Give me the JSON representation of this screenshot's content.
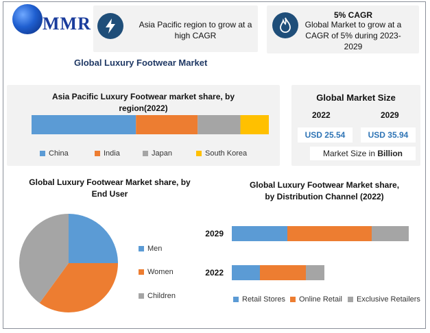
{
  "brand": {
    "name": "MMR"
  },
  "colors": {
    "blue": "#5b9bd5",
    "orange": "#ed7d31",
    "gray": "#a5a5a5",
    "yellow": "#ffc000",
    "badge": "#1f4e79",
    "accent_text": "#2e74b5"
  },
  "badges": [
    {
      "icon": "lightning-icon",
      "text": "Asia Pacific region to grow at a high CAGR"
    },
    {
      "icon": "flame-icon",
      "title": "5% CAGR",
      "text": "Global Market to grow at a CAGR of 5% during 2023-2029"
    }
  ],
  "main_title": "Global Luxury Footwear Market",
  "market_size": {
    "title": "Global Market Size",
    "years": [
      "2022",
      "2029"
    ],
    "values": [
      "USD 25.54",
      "USD 35.94"
    ],
    "note_prefix": "Market Size in ",
    "note_bold": "Billion"
  },
  "chart_data": [
    {
      "type": "bar",
      "orientation": "horizontal-stacked",
      "title": "Asia Pacific Luxury Footwear market share, by region(2022)",
      "categories": [
        ""
      ],
      "series": [
        {
          "name": "China",
          "values": [
            44
          ]
        },
        {
          "name": "India",
          "values": [
            26
          ]
        },
        {
          "name": "Japan",
          "values": [
            18
          ]
        },
        {
          "name": "South Korea",
          "values": [
            12
          ]
        }
      ],
      "legend": "bottom"
    },
    {
      "type": "pie",
      "title": "Global Luxury Footwear Market share, by End User",
      "labels": [
        "Men",
        "Women",
        "Children"
      ],
      "values": [
        25,
        35,
        40
      ],
      "legend": "right"
    },
    {
      "type": "bar",
      "orientation": "horizontal-stacked",
      "title": "Global Luxury Footwear Market share, by Distribution Channel (2022)",
      "categories": [
        "2029",
        "2022"
      ],
      "series": [
        {
          "name": "Retail Stores",
          "values": [
            81,
            41
          ]
        },
        {
          "name": "Online Retail",
          "values": [
            123,
            67
          ]
        },
        {
          "name": "Exclusive Retailers",
          "values": [
            54,
            27
          ]
        }
      ],
      "legend": "bottom"
    }
  ]
}
